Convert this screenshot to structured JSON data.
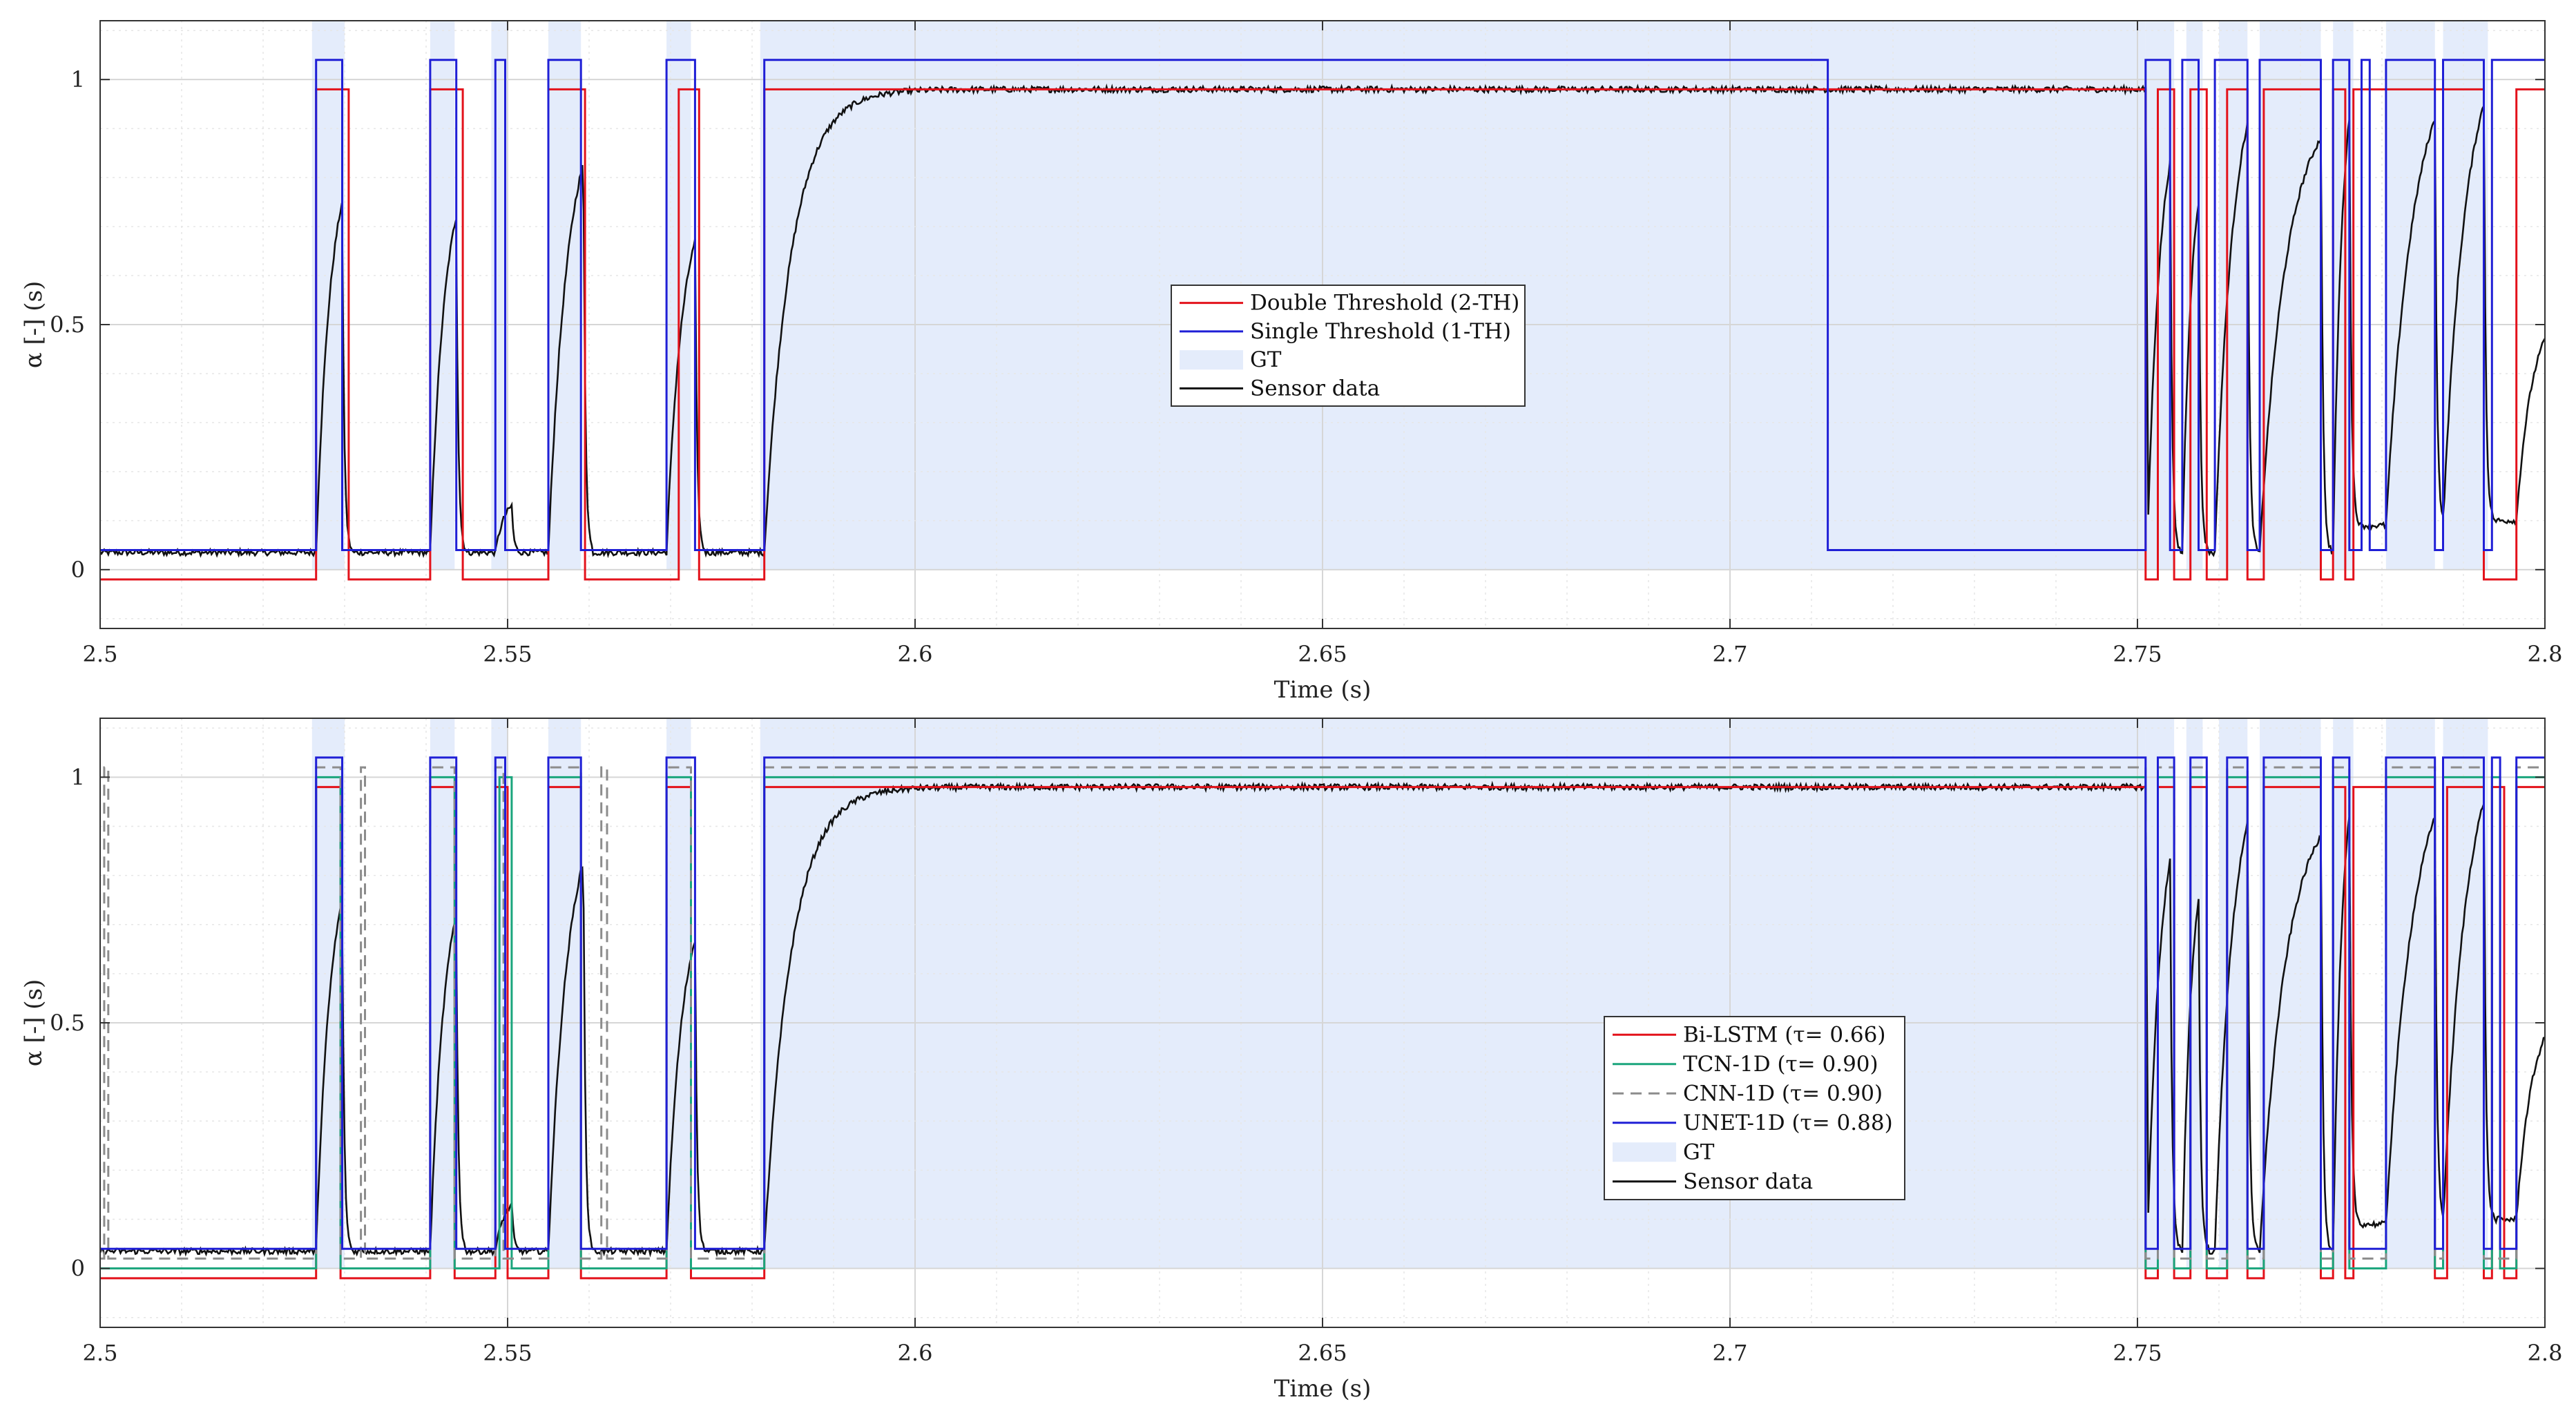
{
  "colors": {
    "red": "#e3121b",
    "blue": "#1f1fd6",
    "green": "#1aa57c",
    "gray": "#8c8c8c",
    "black": "#111111",
    "gt": "#e4ecfb"
  },
  "chart_data": [
    {
      "type": "line",
      "xlabel": "Time (s)",
      "ylabel": "α [-] (s)",
      "xlim": [
        2.5,
        2.8
      ],
      "ylim": [
        -0.12,
        1.12
      ],
      "xticks": [
        "2.5",
        "2.55",
        "2.6",
        "2.65",
        "2.7",
        "2.75",
        "2.8"
      ],
      "yticks": [
        "0",
        "0.5",
        "1"
      ],
      "grid": true,
      "legend_position": "center",
      "gt_intervals": [
        [
          2.526,
          2.53
        ],
        [
          2.5405,
          2.5435
        ],
        [
          2.548,
          2.55
        ],
        [
          2.555,
          2.559
        ],
        [
          2.5695,
          2.5725
        ],
        [
          2.581,
          2.751
        ],
        [
          2.751,
          2.7545
        ],
        [
          2.756,
          2.758
        ],
        [
          2.76,
          2.7635
        ],
        [
          2.765,
          2.7725
        ],
        [
          2.774,
          2.7765
        ],
        [
          2.7805,
          2.7865
        ],
        [
          2.7875,
          2.793
        ]
      ],
      "series": [
        {
          "name": "Double Threshold (2-TH)",
          "color_key": "red",
          "low": -0.02,
          "high": 0.98,
          "on_intervals": [
            [
              2.5265,
              2.5305
            ],
            [
              2.5405,
              2.5445
            ],
            [
              2.555,
              2.5595
            ],
            [
              2.571,
              2.5735
            ],
            [
              2.5815,
              2.751
            ],
            [
              2.7525,
              2.7545
            ],
            [
              2.7565,
              2.7585
            ],
            [
              2.761,
              2.7635
            ],
            [
              2.7655,
              2.7725
            ],
            [
              2.774,
              2.7755
            ],
            [
              2.7765,
              2.7925
            ],
            [
              2.7965,
              2.8
            ]
          ]
        },
        {
          "name": "Single Threshold (1-TH)",
          "color_key": "blue",
          "low": 0.04,
          "high": 1.04,
          "on_intervals": [
            [
              2.5265,
              2.5297
            ],
            [
              2.5405,
              2.5437
            ],
            [
              2.5485,
              2.5497
            ],
            [
              2.555,
              2.559
            ],
            [
              2.5695,
              2.573
            ],
            [
              2.5815,
              2.712
            ],
            [
              2.751,
              2.754
            ],
            [
              2.7555,
              2.7575
            ],
            [
              2.7595,
              2.7635
            ],
            [
              2.765,
              2.7725
            ],
            [
              2.774,
              2.776
            ],
            [
              2.7775,
              2.7785
            ],
            [
              2.7805,
              2.7865
            ],
            [
              2.7875,
              2.7925
            ],
            [
              2.7935,
              2.8
            ]
          ]
        },
        {
          "name": "GT",
          "color_key": "gt",
          "kind": "area"
        },
        {
          "name": "Sensor data",
          "color_key": "black",
          "baseline": 0.035,
          "plateau": 0.98,
          "rises": [
            [
              2.5265,
              2.5297,
              0.75
            ],
            [
              2.5405,
              2.5437,
              0.72
            ],
            [
              2.5485,
              2.5505,
              0.13
            ],
            [
              2.555,
              2.5593,
              0.83
            ],
            [
              2.5695,
              2.573,
              0.67
            ],
            [
              2.5815,
              2.751,
              0.98
            ],
            [
              2.7512,
              2.754,
              0.83
            ],
            [
              2.7555,
              2.7575,
              0.75
            ],
            [
              2.7595,
              2.7635,
              0.91
            ],
            [
              2.765,
              2.7725,
              0.97
            ],
            [
              2.774,
              2.776,
              0.92
            ],
            [
              2.7805,
              2.7865,
              0.92
            ],
            [
              2.7875,
              2.7925,
              0.95
            ],
            [
              2.7965,
              2.8,
              0.47
            ]
          ],
          "base_after": [
            [
              2.776,
              0.09
            ],
            [
              2.7925,
              0.1
            ]
          ]
        }
      ]
    },
    {
      "type": "line",
      "xlabel": "Time (s)",
      "ylabel": "α [-] (s)",
      "xlim": [
        2.5,
        2.8
      ],
      "ylim": [
        -0.12,
        1.12
      ],
      "xticks": [
        "2.5",
        "2.55",
        "2.6",
        "2.65",
        "2.7",
        "2.75",
        "2.8"
      ],
      "yticks": [
        "0",
        "0.5",
        "1"
      ],
      "grid": true,
      "legend_position": "center-right",
      "gt_intervals": [
        [
          2.526,
          2.53
        ],
        [
          2.5405,
          2.5435
        ],
        [
          2.548,
          2.55
        ],
        [
          2.555,
          2.559
        ],
        [
          2.5695,
          2.5725
        ],
        [
          2.581,
          2.751
        ],
        [
          2.751,
          2.7545
        ],
        [
          2.756,
          2.758
        ],
        [
          2.76,
          2.7635
        ],
        [
          2.765,
          2.7725
        ],
        [
          2.774,
          2.7765
        ],
        [
          2.7805,
          2.7865
        ],
        [
          2.7875,
          2.793
        ]
      ],
      "series": [
        {
          "name": "Bi-LSTM (τ= 0.66)",
          "color_key": "red",
          "low": -0.02,
          "high": 0.98,
          "on_intervals": [
            [
              2.5265,
              2.5295
            ],
            [
              2.5405,
              2.5435
            ],
            [
              2.5485,
              2.55
            ],
            [
              2.555,
              2.559
            ],
            [
              2.5695,
              2.5725
            ],
            [
              2.5815,
              2.751
            ],
            [
              2.7525,
              2.7545
            ],
            [
              2.7565,
              2.7585
            ],
            [
              2.761,
              2.7635
            ],
            [
              2.7655,
              2.7725
            ],
            [
              2.774,
              2.7755
            ],
            [
              2.7765,
              2.7865
            ],
            [
              2.788,
              2.7925
            ],
            [
              2.7935,
              2.795
            ],
            [
              2.7965,
              2.8
            ]
          ]
        },
        {
          "name": "TCN-1D (τ= 0.90)",
          "color_key": "green",
          "low": 0.0,
          "high": 1.0,
          "on_intervals": [
            [
              2.5265,
              2.5295
            ],
            [
              2.5405,
              2.5435
            ],
            [
              2.549,
              2.5505
            ],
            [
              2.555,
              2.559
            ],
            [
              2.5695,
              2.5725
            ],
            [
              2.5815,
              2.751
            ],
            [
              2.7525,
              2.7545
            ],
            [
              2.7565,
              2.7585
            ],
            [
              2.761,
              2.7635
            ],
            [
              2.7655,
              2.7725
            ],
            [
              2.774,
              2.776
            ],
            [
              2.7805,
              2.7865
            ],
            [
              2.7875,
              2.7925
            ],
            [
              2.7935,
              2.7945
            ],
            [
              2.7965,
              2.8
            ]
          ]
        },
        {
          "name": "CNN-1D (τ= 0.90)",
          "color_key": "gray",
          "low": 0.02,
          "high": 1.02,
          "dashed": true,
          "on_intervals": [
            [
              2.5005,
              2.501
            ],
            [
              2.5265,
              2.5295
            ],
            [
              2.532,
              2.5325
            ],
            [
              2.5405,
              2.5435
            ],
            [
              2.5485,
              2.5495
            ],
            [
              2.555,
              2.559
            ],
            [
              2.5615,
              2.5622
            ],
            [
              2.5695,
              2.5725
            ],
            [
              2.5815,
              2.751
            ],
            [
              2.7525,
              2.7545
            ],
            [
              2.7565,
              2.7585
            ],
            [
              2.761,
              2.7635
            ],
            [
              2.7655,
              2.7725
            ],
            [
              2.774,
              2.776
            ],
            [
              2.7805,
              2.7865
            ],
            [
              2.7875,
              2.7925
            ],
            [
              2.7965,
              2.8
            ]
          ]
        },
        {
          "name": "UNET-1D (τ= 0.88)",
          "color_key": "blue",
          "low": 0.04,
          "high": 1.04,
          "on_intervals": [
            [
              2.5265,
              2.5297
            ],
            [
              2.5405,
              2.5437
            ],
            [
              2.5485,
              2.5497
            ],
            [
              2.555,
              2.559
            ],
            [
              2.5695,
              2.573
            ],
            [
              2.5815,
              2.751
            ],
            [
              2.7525,
              2.7545
            ],
            [
              2.7565,
              2.7585
            ],
            [
              2.761,
              2.7635
            ],
            [
              2.7655,
              2.7725
            ],
            [
              2.774,
              2.776
            ],
            [
              2.7805,
              2.7865
            ],
            [
              2.7875,
              2.7925
            ],
            [
              2.7935,
              2.7945
            ],
            [
              2.7965,
              2.8
            ]
          ]
        },
        {
          "name": "GT",
          "color_key": "gt",
          "kind": "area"
        },
        {
          "name": "Sensor data",
          "color_key": "black",
          "baseline": 0.035,
          "plateau": 0.98,
          "rises": [
            [
              2.5265,
              2.5297,
              0.75
            ],
            [
              2.5405,
              2.5437,
              0.72
            ],
            [
              2.5485,
              2.5505,
              0.13
            ],
            [
              2.555,
              2.5593,
              0.83
            ],
            [
              2.5695,
              2.573,
              0.67
            ],
            [
              2.5815,
              2.751,
              0.98
            ],
            [
              2.7512,
              2.754,
              0.83
            ],
            [
              2.7555,
              2.7575,
              0.75
            ],
            [
              2.7595,
              2.7635,
              0.91
            ],
            [
              2.765,
              2.7725,
              0.97
            ],
            [
              2.774,
              2.776,
              0.92
            ],
            [
              2.7805,
              2.7865,
              0.92
            ],
            [
              2.7875,
              2.7925,
              0.95
            ],
            [
              2.7965,
              2.8,
              0.47
            ]
          ],
          "base_after": [
            [
              2.776,
              0.09
            ],
            [
              2.7925,
              0.1
            ]
          ]
        }
      ]
    }
  ]
}
